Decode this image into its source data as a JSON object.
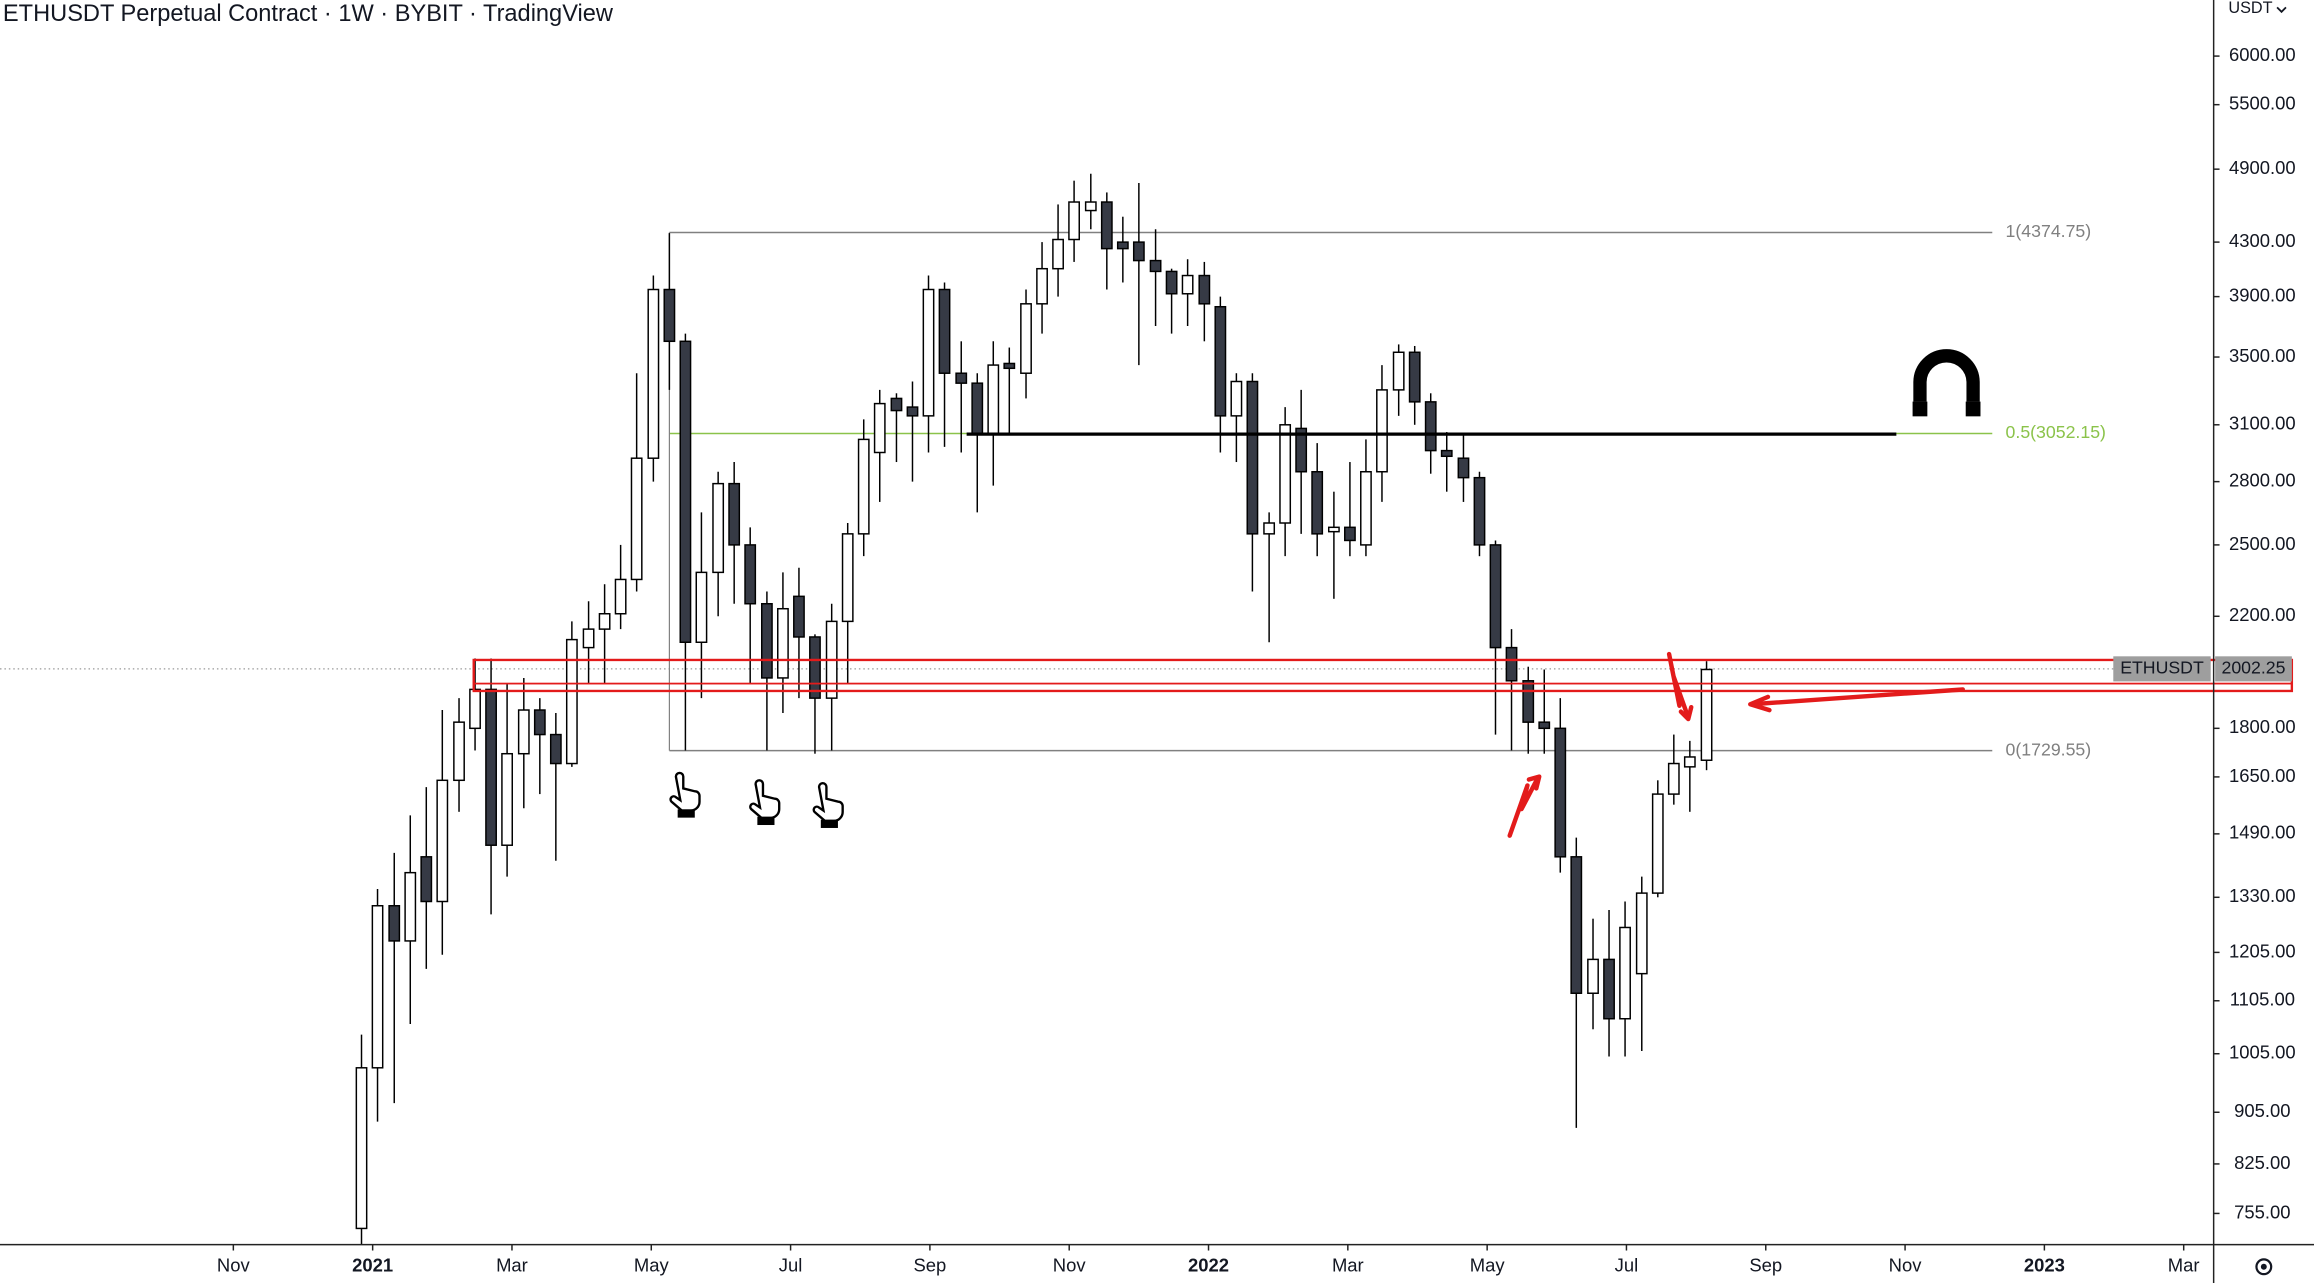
{
  "chart_data": {
    "type": "candlestick",
    "title": "ETHUSDT Perpetual Contract · 1W · BYBIT · TradingView",
    "currency": "USDT",
    "log_scale": true,
    "x": [
      1.84,
      2.07,
      2.31,
      2.54,
      2.77,
      3.0,
      3.24,
      3.47,
      3.7,
      3.93,
      4.17,
      4.4,
      4.63,
      4.86,
      5.1,
      5.33,
      5.56,
      5.79,
      6.03,
      6.26,
      6.49,
      6.72,
      6.96,
      7.19,
      7.42,
      7.66,
      7.89,
      8.12,
      8.35,
      8.59,
      8.82,
      9.05,
      9.28,
      9.52,
      9.75,
      9.98,
      10.21,
      10.45,
      10.68,
      10.91,
      11.14,
      11.38,
      11.61,
      11.84,
      12.07,
      12.31,
      12.54,
      12.77,
      13.0,
      13.24,
      13.47,
      13.7,
      13.94,
      14.17,
      14.4,
      14.63,
      14.87,
      15.1,
      15.33,
      15.56,
      15.8,
      16.03,
      16.26,
      16.49,
      16.73,
      16.96,
      17.19,
      17.42,
      17.66,
      17.89,
      18.12,
      18.35,
      18.59,
      18.82,
      19.05,
      19.28,
      19.52,
      19.75,
      19.98,
      20.22,
      20.45,
      20.68,
      20.91,
      21.15
    ],
    "open": [
      735,
      980,
      1310,
      1230,
      1430,
      1320,
      1640,
      1800,
      1930,
      1460,
      1720,
      1860,
      1780,
      1690,
      2080,
      2150,
      2210,
      2350,
      2920,
      3950,
      3600,
      2100,
      2380,
      2790,
      2500,
      2250,
      1970,
      2280,
      2120,
      1900,
      2180,
      2550,
      2950,
      3250,
      3200,
      3150,
      3950,
      3400,
      3340,
      3050,
      3460,
      3400,
      3850,
      4100,
      4320,
      4550,
      4620,
      4300,
      4300,
      4160,
      4080,
      3920,
      4050,
      3830,
      3150,
      3350,
      2550,
      2600,
      3080,
      2850,
      2560,
      2580,
      2500,
      2850,
      3300,
      3530,
      3230,
      2960,
      2920,
      2820,
      2500,
      2080,
      1960,
      1820,
      1800,
      1430,
      1120,
      1190,
      1070,
      1160,
      1340,
      1600,
      1680,
      1700
    ],
    "high": [
      1040,
      1350,
      1440,
      1540,
      1620,
      1860,
      1900,
      2040,
      2040,
      1950,
      1970,
      1900,
      1850,
      2180,
      2260,
      2330,
      2500,
      3400,
      4050,
      4370,
      3650,
      2650,
      2850,
      2900,
      2580,
      2300,
      2380,
      2400,
      2130,
      2250,
      2600,
      3130,
      3300,
      3280,
      3350,
      4050,
      4000,
      3600,
      3400,
      3600,
      3560,
      3950,
      4300,
      4600,
      4800,
      4860,
      4700,
      4500,
      4780,
      4400,
      4100,
      4170,
      4150,
      3900,
      3400,
      3400,
      2650,
      3200,
      3300,
      3000,
      2750,
      2900,
      3020,
      3450,
      3580,
      3570,
      3280,
      3060,
      3050,
      2850,
      2520,
      2150,
      2010,
      2000,
      1900,
      1480,
      1280,
      1300,
      1320,
      1380,
      1640,
      1780,
      1760,
      2030
    ],
    "low": [
      700,
      890,
      920,
      1060,
      1170,
      1200,
      1550,
      1730,
      1290,
      1380,
      1560,
      1600,
      1420,
      1680,
      1950,
      1950,
      2150,
      2300,
      2800,
      3300,
      1730,
      1900,
      2200,
      2250,
      1950,
      1730,
      1850,
      1900,
      1720,
      1730,
      1950,
      2450,
      2700,
      2900,
      2800,
      2950,
      2980,
      2950,
      2650,
      2780,
      3050,
      3250,
      3650,
      3900,
      4150,
      4400,
      3950,
      4000,
      3450,
      3700,
      3650,
      3700,
      3600,
      2950,
      2900,
      2300,
      2100,
      2450,
      2550,
      2450,
      2270,
      2450,
      2450,
      2700,
      3150,
      3100,
      2840,
      2750,
      2700,
      2450,
      1780,
      1730,
      1720,
      1720,
      1390,
      880,
      1050,
      1000,
      1000,
      1010,
      1330,
      1570,
      1550,
      1670
    ],
    "close": [
      980,
      1310,
      1230,
      1390,
      1320,
      1640,
      1820,
      1930,
      1460,
      1720,
      1860,
      1780,
      1690,
      2110,
      2150,
      2210,
      2350,
      2920,
      3950,
      3600,
      2100,
      2380,
      2790,
      2500,
      2250,
      1970,
      2230,
      2120,
      1900,
      2180,
      2550,
      3020,
      3220,
      3180,
      3150,
      3950,
      3400,
      3340,
      3050,
      3450,
      3430,
      3850,
      4100,
      4320,
      4620,
      4620,
      4250,
      4250,
      4160,
      4080,
      3920,
      4050,
      3850,
      3150,
      3350,
      2550,
      2600,
      3100,
      2850,
      2550,
      2580,
      2520,
      2850,
      3300,
      3530,
      3230,
      2960,
      2930,
      2820,
      2500,
      2080,
      1960,
      1820,
      1800,
      1430,
      1120,
      1190,
      1070,
      1260,
      1340,
      1600,
      1690,
      1710,
      2000
    ],
    "xlim": [
      -3.35,
      28.43
    ],
    "ylim": [
      714,
      6634
    ],
    "xticks": [
      {
        "value": 0,
        "label": "Nov"
      },
      {
        "value": 2,
        "label": "2021"
      },
      {
        "value": 4,
        "label": "Mar"
      },
      {
        "value": 6,
        "label": "May"
      },
      {
        "value": 8,
        "label": "Jul"
      },
      {
        "value": 10,
        "label": "Sep"
      },
      {
        "value": 12,
        "label": "Nov"
      },
      {
        "value": 14,
        "label": "2022"
      },
      {
        "value": 16,
        "label": "Mar"
      },
      {
        "value": 18,
        "label": "May"
      },
      {
        "value": 20,
        "label": "Jul"
      },
      {
        "value": 22,
        "label": "Sep"
      },
      {
        "value": 24,
        "label": "Nov"
      },
      {
        "value": 26,
        "label": "2023"
      },
      {
        "value": 28,
        "label": "Mar"
      }
    ],
    "yticks": [
      {
        "value": 6000,
        "label": "6000.00"
      },
      {
        "value": 5500,
        "label": "5500.00"
      },
      {
        "value": 4900,
        "label": "4900.00"
      },
      {
        "value": 4300,
        "label": "4300.00"
      },
      {
        "value": 3900,
        "label": "3900.00"
      },
      {
        "value": 3500,
        "label": "3500.00"
      },
      {
        "value": 3100,
        "label": "3100.00"
      },
      {
        "value": 2800,
        "label": "2800.00"
      },
      {
        "value": 2500,
        "label": "2500.00"
      },
      {
        "value": 2200,
        "label": "2200.00"
      },
      {
        "value": 1800,
        "label": "1800.00"
      },
      {
        "value": 1650,
        "label": "1650.00"
      },
      {
        "value": 1490,
        "label": "1490.00"
      },
      {
        "value": 1330,
        "label": "1330.00"
      },
      {
        "value": 1205,
        "label": "1205.00"
      },
      {
        "value": 1105,
        "label": "1105.00"
      },
      {
        "value": 1005,
        "label": "1005.00"
      },
      {
        "value": 905,
        "label": "905.00"
      },
      {
        "value": 825,
        "label": "825.00"
      },
      {
        "value": 755,
        "label": "755.00"
      }
    ],
    "levels": [
      {
        "label": "1(4374.75)",
        "value": 4374.75,
        "color": "#808080"
      },
      {
        "label": "0.5(3052.15)",
        "value": 3052.15,
        "color": "#8bc34a"
      },
      {
        "label": "0(1729.55)",
        "value": 1729.55,
        "color": "#808080"
      }
    ],
    "last_price": {
      "symbol": "ETHUSDT",
      "value": 2002.25
    }
  }
}
